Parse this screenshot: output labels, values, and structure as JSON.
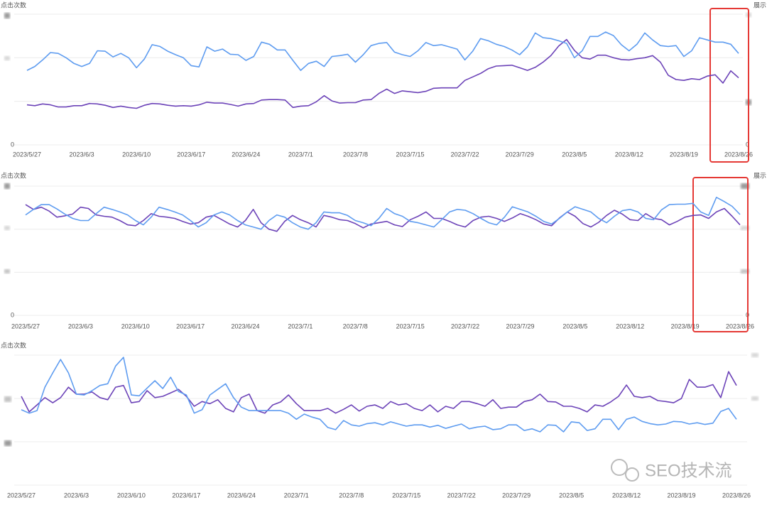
{
  "chart_data": [
    {
      "type": "line",
      "y_label": "点击次数",
      "y2_label": "展示",
      "categories": [
        "2023/5/27",
        null,
        null,
        null,
        null,
        null,
        null,
        "2023/6/3",
        null,
        null,
        null,
        null,
        null,
        null,
        "2023/6/10",
        null,
        null,
        null,
        null,
        null,
        null,
        "2023/6/17",
        null,
        null,
        null,
        null,
        null,
        null,
        "2023/6/24",
        null,
        null,
        null,
        null,
        null,
        null,
        "2023/7/1",
        null,
        null,
        null,
        null,
        null,
        null,
        "2023/7/8",
        null,
        null,
        null,
        null,
        null,
        null,
        "2023/7/15",
        null,
        null,
        null,
        null,
        null,
        null,
        "2023/7/22",
        null,
        null,
        null,
        null,
        null,
        null,
        "2023/7/29",
        null,
        null,
        null,
        null,
        null,
        null,
        "2023/8/5",
        null,
        null,
        null,
        null,
        null,
        null,
        "2023/8/12",
        null,
        null,
        null,
        null,
        null,
        null,
        "2023/8/19",
        null,
        null,
        null,
        null,
        null,
        null,
        "2023/8/26"
      ],
      "ylim": [
        0,
        300
      ],
      "yticks": [
        0
      ],
      "y2lim": [
        0,
        300
      ],
      "y2ticks": [
        0
      ],
      "grid": [
        0,
        100,
        200,
        300
      ],
      "series": [
        {
          "color": "#6c43b8",
          "values": [
            92,
            90,
            94,
            92,
            87,
            87,
            90,
            90,
            95,
            94,
            91,
            86,
            89,
            86,
            84,
            91,
            95,
            94,
            91,
            89,
            90,
            89,
            92,
            98,
            96,
            96,
            93,
            89,
            94,
            95,
            103,
            104,
            104,
            103,
            86,
            89,
            90,
            99,
            113,
            101,
            96,
            97,
            97,
            103,
            104,
            118,
            128,
            118,
            124,
            122,
            120,
            123,
            130,
            131,
            131,
            131,
            148,
            156,
            164,
            175,
            181,
            182,
            183,
            177,
            171,
            178,
            190,
            205,
            227,
            242,
            217,
            200,
            197,
            206,
            206,
            200,
            196,
            195,
            198,
            200,
            205,
            190,
            160,
            150,
            148,
            152,
            150,
            158,
            161,
            142,
            170,
            154
          ]
        },
        {
          "color": "#5e9cf0",
          "axis": "y2",
          "values": [
            171,
            180,
            195,
            212,
            210,
            200,
            187,
            180,
            187,
            216,
            215,
            202,
            210,
            200,
            177,
            197,
            230,
            226,
            215,
            207,
            200,
            182,
            179,
            225,
            215,
            220,
            208,
            207,
            194,
            203,
            236,
            231,
            218,
            218,
            194,
            171,
            187,
            192,
            180,
            203,
            205,
            208,
            190,
            207,
            228,
            233,
            235,
            213,
            207,
            203,
            216,
            235,
            228,
            230,
            225,
            220,
            195,
            215,
            244,
            239,
            231,
            226,
            218,
            207,
            225,
            257,
            246,
            244,
            239,
            233,
            200,
            216,
            249,
            249,
            259,
            251,
            230,
            216,
            231,
            257,
            241,
            228,
            226,
            228,
            203,
            216,
            246,
            241,
            236,
            236,
            231,
            210
          ]
        }
      ]
    },
    {
      "type": "line",
      "y_label": "点击次数",
      "y2_label": "展示",
      "categories": [
        "2023/5/27",
        null,
        null,
        null,
        null,
        null,
        null,
        "2023/6/3",
        null,
        null,
        null,
        null,
        null,
        null,
        "2023/6/10",
        null,
        null,
        null,
        null,
        null,
        null,
        "2023/6/17",
        null,
        null,
        null,
        null,
        null,
        null,
        "2023/6/24",
        null,
        null,
        null,
        null,
        null,
        null,
        "2023/7/1",
        null,
        null,
        null,
        null,
        null,
        null,
        "2023/7/8",
        null,
        null,
        null,
        null,
        null,
        null,
        "2023/7/15",
        null,
        null,
        null,
        null,
        null,
        null,
        "2023/7/22",
        null,
        null,
        null,
        null,
        null,
        null,
        "2023/7/29",
        null,
        null,
        null,
        null,
        null,
        null,
        "2023/8/5",
        null,
        null,
        null,
        null,
        null,
        null,
        "2023/8/12",
        null,
        null,
        null,
        null,
        null,
        null,
        "2023/8/19",
        null,
        null,
        null,
        null,
        null,
        null,
        "2023/8/26"
      ],
      "ylim": [
        0,
        300
      ],
      "yticks": [
        0
      ],
      "y2lim": [
        0,
        300
      ],
      "y2ticks": [
        0
      ],
      "grid": [
        0,
        100,
        200,
        300
      ],
      "series": [
        {
          "color": "#6c43b8",
          "values": [
            257,
            246,
            251,
            242,
            228,
            231,
            235,
            251,
            248,
            233,
            230,
            228,
            220,
            210,
            208,
            220,
            236,
            230,
            228,
            225,
            218,
            212,
            215,
            228,
            232,
            222,
            212,
            205,
            220,
            246,
            215,
            200,
            195,
            218,
            232,
            222,
            215,
            205,
            232,
            228,
            222,
            220,
            213,
            203,
            212,
            215,
            218,
            210,
            206,
            222,
            230,
            240,
            225,
            225,
            218,
            210,
            205,
            220,
            228,
            230,
            225,
            218,
            226,
            236,
            230,
            222,
            212,
            208,
            226,
            240,
            230,
            213,
            205,
            216,
            232,
            244,
            235,
            222,
            220,
            236,
            225,
            222,
            210,
            218,
            228,
            232,
            233,
            225,
            240,
            248,
            230,
            210
          ]
        },
        {
          "color": "#5e9cf0",
          "axis": "y2",
          "values": [
            233,
            246,
            257,
            257,
            247,
            235,
            225,
            220,
            220,
            236,
            251,
            246,
            240,
            233,
            220,
            210,
            228,
            251,
            246,
            240,
            233,
            220,
            205,
            215,
            233,
            240,
            233,
            220,
            210,
            205,
            200,
            220,
            233,
            228,
            215,
            205,
            200,
            215,
            240,
            238,
            238,
            232,
            220,
            215,
            208,
            225,
            248,
            236,
            230,
            218,
            215,
            210,
            205,
            222,
            240,
            246,
            244,
            236,
            225,
            215,
            210,
            228,
            252,
            246,
            240,
            230,
            218,
            212,
            225,
            240,
            252,
            246,
            240,
            225,
            215,
            230,
            243,
            246,
            240,
            225,
            222,
            245,
            257,
            258,
            258,
            260,
            240,
            232,
            274,
            264,
            253,
            234
          ]
        }
      ]
    },
    {
      "type": "line",
      "y_label": "点击次数",
      "categories": [
        "2023/5/27",
        null,
        null,
        null,
        null,
        null,
        null,
        "2023/6/3",
        null,
        null,
        null,
        null,
        null,
        null,
        "2023/6/10",
        null,
        null,
        null,
        null,
        null,
        null,
        "2023/6/17",
        null,
        null,
        null,
        null,
        null,
        null,
        "2023/6/24",
        null,
        null,
        null,
        null,
        null,
        null,
        "2023/7/1",
        null,
        null,
        null,
        null,
        null,
        null,
        "2023/7/8",
        null,
        null,
        null,
        null,
        null,
        null,
        "2023/7/15",
        null,
        null,
        null,
        null,
        null,
        null,
        "2023/7/22",
        null,
        null,
        null,
        null,
        null,
        null,
        "2023/7/29",
        null,
        null,
        null,
        null,
        null,
        null,
        "2023/8/5",
        null,
        null,
        null,
        null,
        null,
        null,
        "2023/8/12",
        null,
        null,
        null,
        null,
        null,
        null,
        "2023/8/19",
        null,
        null,
        null,
        null,
        null,
        null,
        "2023/8/26"
      ],
      "ylim": [
        0,
        300
      ],
      "yticks": [],
      "y2lim": [
        0,
        300
      ],
      "y2ticks": [],
      "grid": [
        0,
        100,
        200,
        300
      ],
      "series": [
        {
          "color": "#6c43b8",
          "values": [
            205,
            169,
            185,
            202,
            190,
            202,
            226,
            210,
            210,
            215,
            202,
            197,
            226,
            230,
            190,
            193,
            218,
            202,
            205,
            213,
            221,
            205,
            182,
            193,
            188,
            197,
            177,
            169,
            202,
            210,
            172,
            166,
            185,
            192,
            208,
            188,
            172,
            172,
            172,
            177,
            166,
            175,
            185,
            171,
            182,
            185,
            177,
            193,
            185,
            188,
            177,
            172,
            185,
            169,
            182,
            177,
            193,
            193,
            188,
            182,
            197,
            177,
            180,
            180,
            193,
            197,
            210,
            193,
            192,
            182,
            182,
            177,
            169,
            185,
            182,
            192,
            205,
            231,
            205,
            202,
            205,
            195,
            193,
            190,
            200,
            244,
            226,
            226,
            232,
            202,
            262,
            230
          ]
        },
        {
          "color": "#5e9cf0",
          "axis": "y2",
          "values": [
            174,
            166,
            172,
            226,
            259,
            290,
            259,
            210,
            208,
            218,
            230,
            234,
            275,
            295,
            208,
            206,
            224,
            241,
            223,
            249,
            216,
            208,
            166,
            174,
            208,
            221,
            234,
            202,
            180,
            172,
            172,
            172,
            172,
            172,
            166,
            152,
            164,
            157,
            152,
            133,
            128,
            149,
            139,
            136,
            142,
            144,
            139,
            146,
            141,
            136,
            139,
            139,
            134,
            138,
            131,
            136,
            141,
            130,
            134,
            136,
            128,
            130,
            139,
            139,
            126,
            130,
            123,
            139,
            138,
            123,
            146,
            144,
            126,
            130,
            152,
            152,
            128,
            152,
            157,
            147,
            142,
            139,
            141,
            147,
            146,
            141,
            144,
            140,
            143,
            170,
            177,
            152
          ]
        }
      ]
    }
  ],
  "watermark": "SEO技术流"
}
